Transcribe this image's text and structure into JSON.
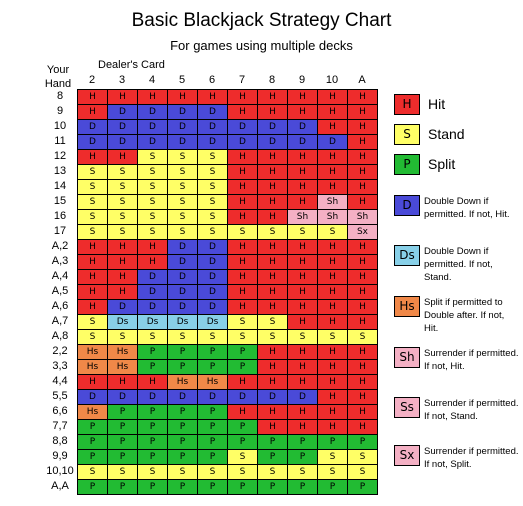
{
  "title": "Basic Blackjack Strategy Chart",
  "subtitle": "For games using multiple decks",
  "dealer_label": "Dealer's Card",
  "your_hand_label": [
    "Your",
    "Hand"
  ],
  "dealer_cards": [
    "2",
    "3",
    "4",
    "5",
    "6",
    "7",
    "8",
    "9",
    "10",
    "A"
  ],
  "colors": {
    "H": "#ee2c2c",
    "S": "#ffff66",
    "P": "#22bb33",
    "D": "#4a4ad8",
    "Ds": "#88d0e8",
    "Hs": "#f08848",
    "Sh": "#f4b0c4",
    "Ss": "#f4b0c4",
    "Sx": "#f4b0c4"
  },
  "hands": [
    {
      "label": "8",
      "actions": [
        "H",
        "H",
        "H",
        "H",
        "H",
        "H",
        "H",
        "H",
        "H",
        "H"
      ]
    },
    {
      "label": "9",
      "actions": [
        "H",
        "D",
        "D",
        "D",
        "D",
        "H",
        "H",
        "H",
        "H",
        "H"
      ]
    },
    {
      "label": "10",
      "actions": [
        "D",
        "D",
        "D",
        "D",
        "D",
        "D",
        "D",
        "D",
        "H",
        "H"
      ]
    },
    {
      "label": "11",
      "actions": [
        "D",
        "D",
        "D",
        "D",
        "D",
        "D",
        "D",
        "D",
        "D",
        "H"
      ]
    },
    {
      "label": "12",
      "actions": [
        "H",
        "H",
        "S",
        "S",
        "S",
        "H",
        "H",
        "H",
        "H",
        "H"
      ]
    },
    {
      "label": "13",
      "actions": [
        "S",
        "S",
        "S",
        "S",
        "S",
        "H",
        "H",
        "H",
        "H",
        "H"
      ]
    },
    {
      "label": "14",
      "actions": [
        "S",
        "S",
        "S",
        "S",
        "S",
        "H",
        "H",
        "H",
        "H",
        "H"
      ]
    },
    {
      "label": "15",
      "actions": [
        "S",
        "S",
        "S",
        "S",
        "S",
        "H",
        "H",
        "H",
        "Sh",
        "H"
      ]
    },
    {
      "label": "16",
      "actions": [
        "S",
        "S",
        "S",
        "S",
        "S",
        "H",
        "H",
        "Sh",
        "Sh",
        "Sh"
      ]
    },
    {
      "label": "17",
      "actions": [
        "S",
        "S",
        "S",
        "S",
        "S",
        "S",
        "S",
        "S",
        "S",
        "Sx"
      ]
    },
    {
      "label": "A,2",
      "actions": [
        "H",
        "H",
        "H",
        "D",
        "D",
        "H",
        "H",
        "H",
        "H",
        "H"
      ]
    },
    {
      "label": "A,3",
      "actions": [
        "H",
        "H",
        "H",
        "D",
        "D",
        "H",
        "H",
        "H",
        "H",
        "H"
      ]
    },
    {
      "label": "A,4",
      "actions": [
        "H",
        "H",
        "D",
        "D",
        "D",
        "H",
        "H",
        "H",
        "H",
        "H"
      ]
    },
    {
      "label": "A,5",
      "actions": [
        "H",
        "H",
        "D",
        "D",
        "D",
        "H",
        "H",
        "H",
        "H",
        "H"
      ]
    },
    {
      "label": "A,6",
      "actions": [
        "H",
        "D",
        "D",
        "D",
        "D",
        "H",
        "H",
        "H",
        "H",
        "H"
      ]
    },
    {
      "label": "A,7",
      "actions": [
        "S",
        "Ds",
        "Ds",
        "Ds",
        "Ds",
        "S",
        "S",
        "H",
        "H",
        "H"
      ]
    },
    {
      "label": "A,8",
      "actions": [
        "S",
        "S",
        "S",
        "S",
        "S",
        "S",
        "S",
        "S",
        "S",
        "S"
      ]
    },
    {
      "label": "2,2",
      "actions": [
        "Hs",
        "Hs",
        "P",
        "P",
        "P",
        "P",
        "H",
        "H",
        "H",
        "H"
      ]
    },
    {
      "label": "3,3",
      "actions": [
        "Hs",
        "Hs",
        "P",
        "P",
        "P",
        "P",
        "H",
        "H",
        "H",
        "H"
      ]
    },
    {
      "label": "4,4",
      "actions": [
        "H",
        "H",
        "H",
        "Hs",
        "Hs",
        "H",
        "H",
        "H",
        "H",
        "H"
      ]
    },
    {
      "label": "5,5",
      "actions": [
        "D",
        "D",
        "D",
        "D",
        "D",
        "D",
        "D",
        "D",
        "H",
        "H"
      ]
    },
    {
      "label": "6,6",
      "actions": [
        "Hs",
        "P",
        "P",
        "P",
        "P",
        "H",
        "H",
        "H",
        "H",
        "H"
      ]
    },
    {
      "label": "7,7",
      "actions": [
        "P",
        "P",
        "P",
        "P",
        "P",
        "P",
        "H",
        "H",
        "H",
        "H"
      ]
    },
    {
      "label": "8,8",
      "actions": [
        "P",
        "P",
        "P",
        "P",
        "P",
        "P",
        "P",
        "P",
        "P",
        "P"
      ]
    },
    {
      "label": "9,9",
      "actions": [
        "P",
        "P",
        "P",
        "P",
        "P",
        "S",
        "P",
        "P",
        "S",
        "S"
      ]
    },
    {
      "label": "10,10",
      "actions": [
        "S",
        "S",
        "S",
        "S",
        "S",
        "S",
        "S",
        "S",
        "S",
        "S"
      ]
    },
    {
      "label": "A,A",
      "actions": [
        "P",
        "P",
        "P",
        "P",
        "P",
        "P",
        "P",
        "P",
        "P",
        "P"
      ]
    }
  ],
  "legend": [
    {
      "code": "H",
      "text": "Hit"
    },
    {
      "code": "S",
      "text": "Stand"
    },
    {
      "code": "P",
      "text": "Split"
    },
    {
      "code": "D",
      "text": "Double Down if permitted. If not, Hit."
    },
    {
      "code": "Ds",
      "text": "Double Down if permitted. If not, Stand."
    },
    {
      "code": "Hs",
      "text": "Split if permitted to Double after. If not, Hit."
    },
    {
      "code": "Sh",
      "text": "Surrender if permitted. If not, Hit."
    },
    {
      "code": "Ss",
      "text": "Surrender if permitted. If not, Stand."
    },
    {
      "code": "Sx",
      "text": "Surrender if permitted. If not, Split."
    }
  ]
}
